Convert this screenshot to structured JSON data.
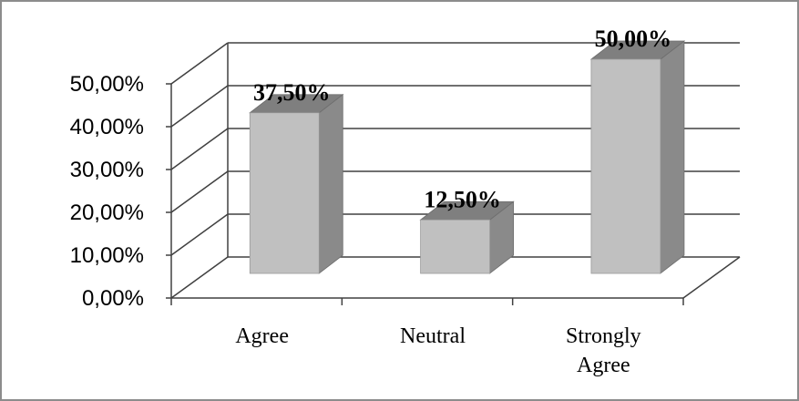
{
  "chart_data": {
    "type": "bar",
    "categories": [
      "Agree",
      "Neutral",
      "Strongly Agree"
    ],
    "category_lines": [
      [
        "Agree"
      ],
      [
        "Neutral"
      ],
      [
        "Strongly",
        "Agree"
      ]
    ],
    "values": [
      37.5,
      12.5,
      50.0
    ],
    "data_labels": [
      "37,50%",
      "12,50%",
      "50,00%"
    ],
    "yticks": [
      "0,00%",
      "10,00%",
      "20,00%",
      "30,00%",
      "40,00%",
      "50,00%"
    ],
    "ylim": [
      0,
      50
    ],
    "style": "3d-column",
    "grid": true,
    "legend": "none",
    "colors": {
      "bar_front": "#c0c0c0",
      "bar_side": "#8a8a8a",
      "bar_top": "#7f7f7f",
      "grid": "#404040",
      "frame": "#8c8c8c"
    }
  }
}
